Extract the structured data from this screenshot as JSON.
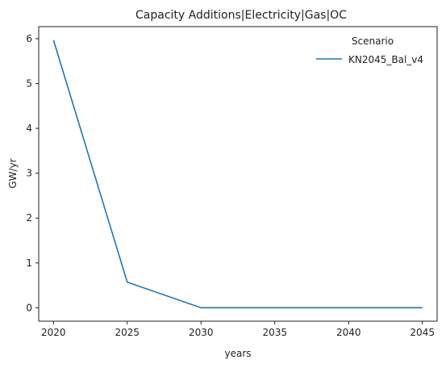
{
  "chart_data": {
    "type": "line",
    "title": "Capacity Additions|Electricity|Gas|OC",
    "xlabel": "years",
    "ylabel": "GW/yr",
    "x": [
      2020,
      2025,
      2030,
      2035,
      2040,
      2045
    ],
    "series": [
      {
        "name": "KN2045_Bal_v4",
        "color": "#1f77b4",
        "values": [
          5.97,
          0.57,
          0.0,
          0.0,
          0.0,
          0.0
        ]
      }
    ],
    "xticks": [
      2020,
      2025,
      2030,
      2035,
      2040,
      2045
    ],
    "yticks": [
      0,
      1,
      2,
      3,
      4,
      5,
      6
    ],
    "xlim": [
      2019,
      2046
    ],
    "ylim": [
      -0.3,
      6.27
    ],
    "legend": {
      "title": "Scenario",
      "placement": "top-right"
    },
    "grid": false
  }
}
